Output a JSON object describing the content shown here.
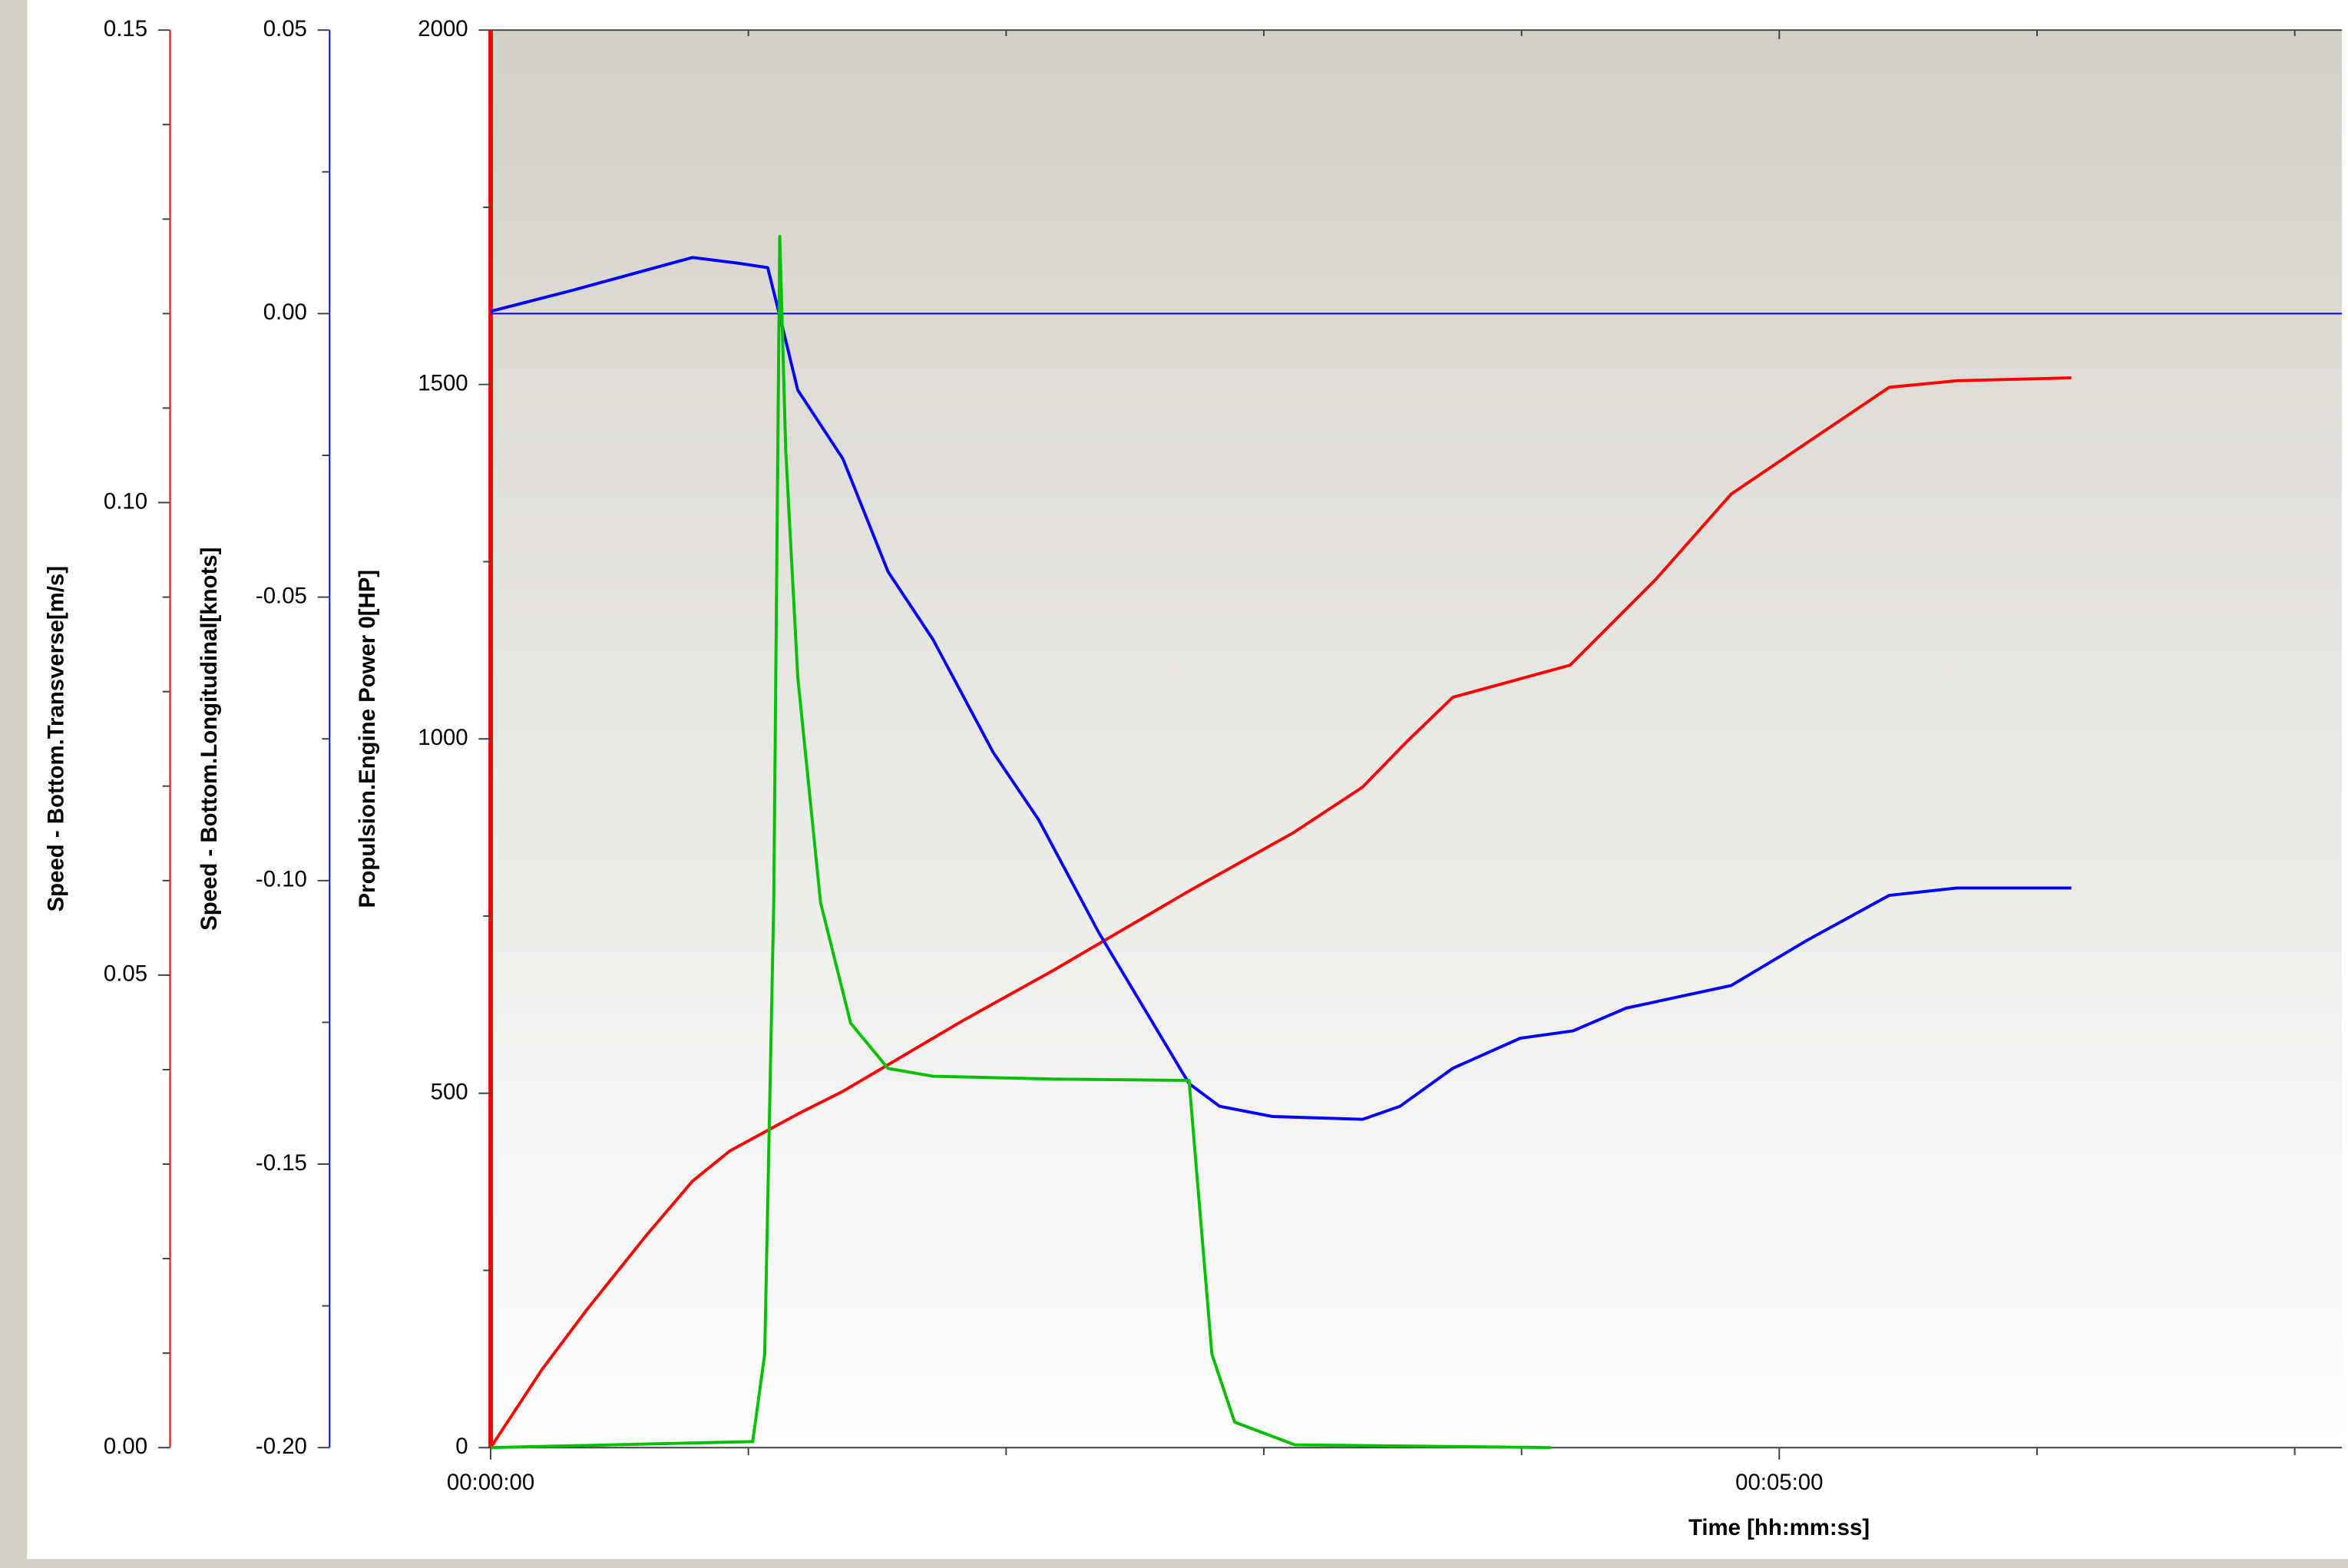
{
  "chart_data": {
    "type": "line",
    "xlabel": "Time [hh:mm:ss]",
    "xlim": [
      0,
      431
    ],
    "xticks": [
      {
        "value": 0,
        "label": "00:00:00"
      },
      {
        "value": 300,
        "label": "00:05:00"
      }
    ],
    "xminor": [
      60,
      120,
      180,
      240,
      360,
      420
    ],
    "ylabel": "Propulsion.Engine Power 0[HP]",
    "ylim": [
      0,
      2000
    ],
    "yticks": [
      0,
      500,
      1000,
      1500,
      2000
    ],
    "yminor": [
      250,
      750,
      1250,
      1750
    ],
    "y_axis_color": "#ff0000",
    "y2label": "Speed - Bottom.Longitudinal[knots]",
    "y2lim": [
      -0.2,
      0.05
    ],
    "y2ticks": [
      0.05,
      {
        "value": 0,
        "label": "0.00"
      },
      -0.05,
      {
        "value": -0.1,
        "label": "-0.10"
      },
      -0.15,
      {
        "value": -0.2,
        "label": "-0.20"
      }
    ],
    "y2minor": [
      0.025,
      -0.025,
      -0.075,
      -0.125,
      -0.175
    ],
    "y2_axis_color": "#0000ff",
    "y2_zero_line": true,
    "y3label": "Speed - Bottom.Transverse[m/s]",
    "y3lim": [
      0,
      0.15
    ],
    "y3ticks": [
      {
        "value": 0,
        "label": "0.00"
      },
      0.05,
      {
        "value": 0.1,
        "label": "0.10"
      },
      0.15
    ],
    "y3minor": [
      0.01,
      0.02,
      0.03,
      0.04,
      0.06,
      0.07,
      0.08,
      0.09,
      0.11,
      0.12,
      0.13,
      0.14
    ],
    "y3_axis_color": "#ff0000",
    "series": [
      {
        "axis": "y3",
        "color": "#ff0000",
        "x": [
          0,
          12,
          22.4,
          36.5,
          47,
          55.7,
          71.5,
          82,
          110,
          131,
          162.6,
          187,
          203,
          213.5,
          224,
          251.3,
          271.3,
          288.8,
          306,
          325.6,
          341.4,
          368
        ],
        "values": [
          0,
          0.0083,
          0.0146,
          0.0226,
          0.0282,
          0.0314,
          0.0353,
          0.0377,
          0.0452,
          0.0505,
          0.0589,
          0.0651,
          0.0699,
          0.0748,
          0.0794,
          0.0828,
          0.0919,
          0.1009,
          0.1062,
          0.1122,
          0.1129,
          0.1132
        ]
      },
      {
        "axis": "y2",
        "color": "#0000ff",
        "x": [
          0,
          19,
          47,
          57.5,
          64.5,
          67.3,
          71.5,
          82,
          92.5,
          103,
          117,
          127.6,
          141.6,
          162.6,
          169.7,
          182,
          203,
          211.7,
          224,
          239.7,
          252,
          264.3,
          288.8,
          306.3,
          325.6,
          341.4,
          368
        ],
        "values": [
          0.0004,
          0.0041,
          0.0099,
          0.0089,
          0.0081,
          -0.0004,
          -0.0135,
          -0.0256,
          -0.0455,
          -0.0575,
          -0.0774,
          -0.0893,
          -0.1092,
          -0.1358,
          -0.1398,
          -0.1416,
          -0.1421,
          -0.1398,
          -0.1331,
          -0.1278,
          -0.1265,
          -0.1225,
          -0.1185,
          -0.1106,
          -0.1026,
          -0.1013,
          -0.1013
        ]
      },
      {
        "axis": "y",
        "color": "#00c000",
        "x": [
          0,
          61,
          63.8,
          65.9,
          67.3,
          68.7,
          71.5,
          76.8,
          83.8,
          92.5,
          103,
          131,
          162.6,
          164.4,
          167.9,
          173.2,
          187.2,
          246.8
        ],
        "values": [
          0,
          8.5,
          132,
          769,
          1709,
          1406,
          1087,
          769,
          599,
          535,
          524,
          520,
          518,
          386,
          132,
          36,
          4,
          0
        ]
      }
    ]
  }
}
